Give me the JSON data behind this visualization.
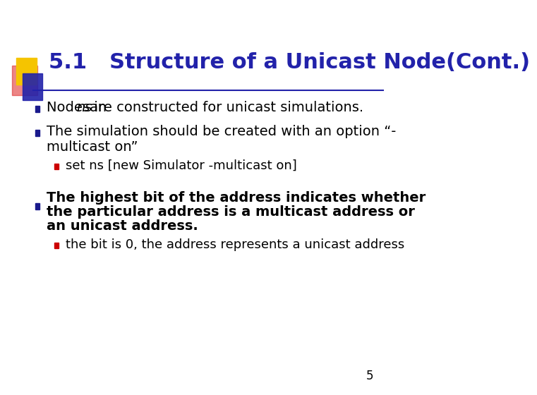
{
  "title": "5.1   Structure of a Unicast Node(Cont.)",
  "title_color": "#2222aa",
  "title_fontsize": 22,
  "background_color": "#ffffff",
  "slide_number": "5",
  "bullet_color": "#1a1a8c",
  "sub_bullet_color": "#cc0000",
  "text_color": "#000000",
  "bullet_square_color": "#1a1a8c",
  "sub_bullet_square_color": "#cc0000",
  "header_line_color": "#2222aa",
  "logo_yellow": "#f5c400",
  "logo_red": "#dd2222",
  "logo_blue": "#2222aa",
  "bullets": [
    {
      "text": "Nodes in ",
      "italic_text": "ns",
      "text_after": " are constructed for unicast simulations.",
      "bold": false,
      "level": 1,
      "sub_bullets": []
    },
    {
      "text": "The simulation should be created with an option “-\nmulticast on”",
      "bold": false,
      "level": 1,
      "sub_bullets": [
        {
          "text": "set ns [new Simulator -multicast on]",
          "bold": false,
          "level": 2,
          "monospace": true
        }
      ]
    },
    {
      "text": "The highest bit of the address indicates whether\nthe particular address is a multicast address or\nan unicast address.",
      "bold": true,
      "level": 1,
      "sub_bullets": [
        {
          "text": "the bit is 0, the address represents a unicast address",
          "bold": false,
          "level": 2,
          "monospace": false
        }
      ]
    }
  ]
}
